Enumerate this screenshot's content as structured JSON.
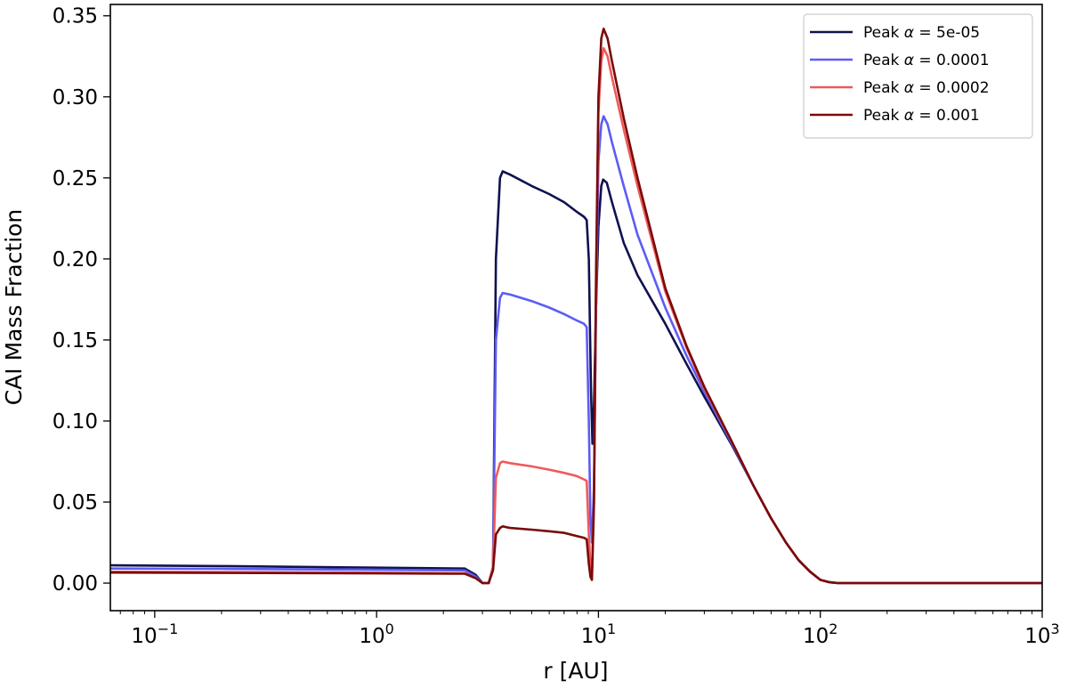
{
  "chart_data": {
    "type": "line",
    "title": "",
    "xlabel": "r [AU]",
    "ylabel": "CAI Mass Fraction",
    "x_scale": "log",
    "xlim": [
      0.0631,
      1000
    ],
    "ylim": [
      -0.017,
      0.357
    ],
    "x_ticks": [
      {
        "value": 0.1,
        "base": "10",
        "exp": "−1"
      },
      {
        "value": 1,
        "base": "10",
        "exp": "0"
      },
      {
        "value": 10,
        "base": "10",
        "exp": "1"
      },
      {
        "value": 100,
        "base": "10",
        "exp": "2"
      },
      {
        "value": 1000,
        "base": "10",
        "exp": "3"
      }
    ],
    "y_ticks": [
      {
        "value": 0.0,
        "label": "0.00"
      },
      {
        "value": 0.05,
        "label": "0.05"
      },
      {
        "value": 0.1,
        "label": "0.10"
      },
      {
        "value": 0.15,
        "label": "0.15"
      },
      {
        "value": 0.2,
        "label": "0.20"
      },
      {
        "value": 0.25,
        "label": "0.25"
      },
      {
        "value": 0.3,
        "label": "0.30"
      },
      {
        "value": 0.35,
        "label": "0.35"
      }
    ],
    "grid": false,
    "legend_position": "top-right",
    "series": [
      {
        "legend_prefix": "Peak ",
        "legend_symbol": "α",
        "legend_value": " = 5e-05",
        "color": "#10124f",
        "x": [
          0.0631,
          0.2,
          1.0,
          2.5,
          2.8,
          3.0,
          3.2,
          3.35,
          3.45,
          3.6,
          3.7,
          4.0,
          5.0,
          6.0,
          7.0,
          8.0,
          8.6,
          8.85,
          9.05,
          9.25,
          9.4,
          9.55,
          9.75,
          10.0,
          10.3,
          10.5,
          10.9,
          11.5,
          13.0,
          15.0,
          20.0,
          25.0,
          30.0,
          40.0,
          50.0,
          60.0,
          70.0,
          80.0,
          90.0,
          100.0,
          110.0,
          120.0,
          150.0,
          200.0,
          500.0,
          1000.0
        ],
        "y": [
          0.011,
          0.0105,
          0.0095,
          0.009,
          0.005,
          0.0,
          0.0,
          0.01,
          0.2,
          0.25,
          0.254,
          0.252,
          0.245,
          0.24,
          0.235,
          0.229,
          0.226,
          0.224,
          0.2,
          0.12,
          0.086,
          0.11,
          0.17,
          0.22,
          0.245,
          0.249,
          0.247,
          0.235,
          0.21,
          0.19,
          0.16,
          0.135,
          0.115,
          0.085,
          0.06,
          0.04,
          0.025,
          0.014,
          0.007,
          0.002,
          0.0005,
          0.0,
          0.0,
          0.0,
          0.0,
          0.0
        ]
      },
      {
        "legend_prefix": "Peak ",
        "legend_symbol": "α",
        "legend_value": " = 0.0001",
        "color": "#5c5cf5",
        "x": [
          0.0631,
          0.2,
          1.0,
          2.5,
          2.8,
          3.0,
          3.2,
          3.35,
          3.45,
          3.6,
          3.7,
          4.0,
          5.0,
          6.0,
          7.0,
          8.0,
          8.6,
          8.85,
          9.05,
          9.2,
          9.35,
          9.55,
          9.75,
          10.0,
          10.3,
          10.55,
          11.0,
          11.5,
          13.0,
          15.0,
          20.0,
          25.0,
          30.0,
          40.0,
          50.0,
          60.0,
          70.0,
          80.0,
          90.0,
          100.0,
          110.0,
          120.0,
          150.0,
          200.0,
          500.0,
          1000.0
        ],
        "y": [
          0.009,
          0.0088,
          0.0082,
          0.0078,
          0.004,
          0.0,
          0.0,
          0.01,
          0.15,
          0.176,
          0.179,
          0.178,
          0.174,
          0.17,
          0.166,
          0.162,
          0.16,
          0.158,
          0.1,
          0.04,
          0.025,
          0.06,
          0.17,
          0.26,
          0.283,
          0.288,
          0.283,
          0.272,
          0.245,
          0.215,
          0.17,
          0.14,
          0.118,
          0.086,
          0.06,
          0.04,
          0.025,
          0.014,
          0.007,
          0.002,
          0.0005,
          0.0,
          0.0,
          0.0,
          0.0,
          0.0
        ]
      },
      {
        "legend_prefix": "Peak ",
        "legend_symbol": "α",
        "legend_value": " = 0.0002",
        "color": "#f05a5a",
        "x": [
          0.0631,
          0.2,
          1.0,
          2.5,
          2.8,
          3.0,
          3.2,
          3.35,
          3.45,
          3.6,
          3.7,
          4.0,
          5.0,
          6.0,
          7.0,
          8.0,
          8.6,
          8.85,
          9.05,
          9.2,
          9.35,
          9.55,
          9.75,
          10.0,
          10.3,
          10.55,
          11.0,
          11.5,
          13.0,
          15.0,
          20.0,
          25.0,
          30.0,
          40.0,
          50.0,
          60.0,
          70.0,
          80.0,
          90.0,
          100.0,
          110.0,
          120.0,
          150.0,
          200.0,
          500.0,
          1000.0
        ],
        "y": [
          0.007,
          0.0068,
          0.0064,
          0.006,
          0.003,
          0.0,
          0.0,
          0.01,
          0.065,
          0.074,
          0.075,
          0.074,
          0.072,
          0.07,
          0.068,
          0.066,
          0.064,
          0.063,
          0.03,
          0.01,
          0.005,
          0.05,
          0.18,
          0.29,
          0.322,
          0.33,
          0.325,
          0.312,
          0.28,
          0.245,
          0.18,
          0.145,
          0.12,
          0.087,
          0.06,
          0.04,
          0.025,
          0.014,
          0.007,
          0.002,
          0.0005,
          0.0,
          0.0,
          0.0,
          0.0,
          0.0
        ]
      },
      {
        "legend_prefix": "Peak ",
        "legend_symbol": "α",
        "legend_value": " = 0.001",
        "color": "#7a0a0a",
        "x": [
          0.0631,
          0.2,
          1.0,
          2.5,
          2.8,
          3.0,
          3.2,
          3.35,
          3.45,
          3.6,
          3.7,
          4.0,
          5.0,
          6.0,
          7.0,
          8.0,
          8.6,
          8.85,
          9.05,
          9.2,
          9.35,
          9.55,
          9.75,
          10.0,
          10.3,
          10.55,
          11.0,
          11.5,
          13.0,
          15.0,
          20.0,
          25.0,
          30.0,
          40.0,
          50.0,
          60.0,
          70.0,
          80.0,
          90.0,
          100.0,
          110.0,
          120.0,
          150.0,
          200.0,
          500.0,
          1000.0
        ],
        "y": [
          0.0065,
          0.0063,
          0.006,
          0.0058,
          0.003,
          0.0,
          0.0,
          0.008,
          0.03,
          0.034,
          0.035,
          0.034,
          0.033,
          0.032,
          0.031,
          0.029,
          0.028,
          0.027,
          0.012,
          0.004,
          0.002,
          0.05,
          0.19,
          0.3,
          0.336,
          0.342,
          0.336,
          0.322,
          0.287,
          0.25,
          0.182,
          0.146,
          0.121,
          0.087,
          0.06,
          0.04,
          0.025,
          0.014,
          0.007,
          0.002,
          0.0005,
          0.0,
          0.0,
          0.0,
          0.0,
          0.0
        ]
      }
    ]
  }
}
